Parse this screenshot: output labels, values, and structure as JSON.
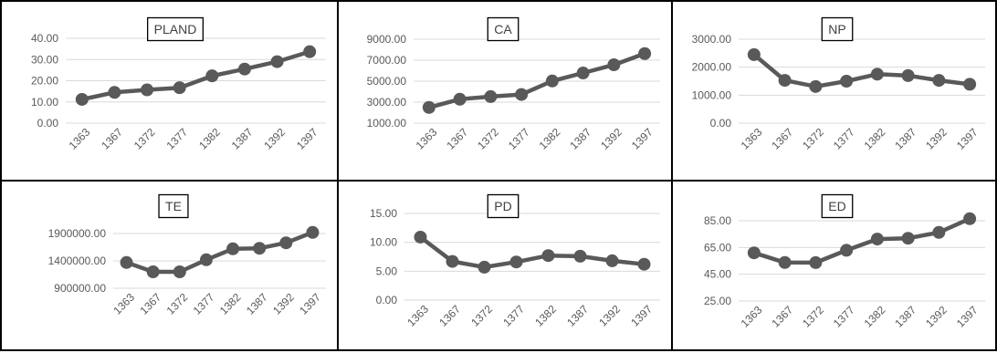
{
  "chart_data": [
    {
      "type": "line",
      "title": "PLAND",
      "categories": [
        "1363",
        "1367",
        "1372",
        "1377",
        "1382",
        "1387",
        "1392",
        "1397"
      ],
      "values": [
        11.2,
        14.5,
        15.7,
        16.7,
        22.3,
        25.5,
        29.0,
        33.7
      ],
      "ylim": [
        0,
        40
      ],
      "yticks": [
        "40.00",
        "30.00",
        "20.00",
        "10.00",
        "0.00"
      ],
      "xlabel": "",
      "ylabel": "",
      "grid": true,
      "legend": "none",
      "color": "#595959"
    },
    {
      "type": "line",
      "title": "CA",
      "categories": [
        "1363",
        "1367",
        "1372",
        "1377",
        "1382",
        "1387",
        "1392",
        "1397"
      ],
      "values": [
        2500,
        3280,
        3530,
        3730,
        5020,
        5780,
        6560,
        7630
      ],
      "ylim": [
        1000,
        9000
      ],
      "yticks": [
        "9000.00",
        "7000.00",
        "5000.00",
        "3000.00",
        "1000.00"
      ],
      "xlabel": "",
      "ylabel": "",
      "grid": true,
      "legend": "none",
      "color": "#595959"
    },
    {
      "type": "line",
      "title": "NP",
      "categories": [
        "1363",
        "1367",
        "1372",
        "1377",
        "1382",
        "1387",
        "1392",
        "1397"
      ],
      "values": [
        2450,
        1530,
        1310,
        1500,
        1750,
        1700,
        1530,
        1390
      ],
      "ylim": [
        0,
        3000
      ],
      "yticks": [
        "3000.00",
        "2000.00",
        "1000.00",
        "0.00"
      ],
      "xlabel": "",
      "ylabel": "",
      "grid": true,
      "legend": "none",
      "color": "#595959"
    },
    {
      "type": "line",
      "title": "TE",
      "categories": [
        "1363",
        "1367",
        "1372",
        "1377",
        "1382",
        "1387",
        "1392",
        "1397"
      ],
      "values": [
        1370000,
        1200000,
        1200000,
        1420000,
        1620000,
        1630000,
        1730000,
        1920000
      ],
      "ylim": [
        900000,
        1900000
      ],
      "yticks": [
        "1900000.00",
        "1400000.00",
        "900000.00"
      ],
      "xlabel": "",
      "ylabel": "",
      "grid": true,
      "legend": "none",
      "color": "#595959"
    },
    {
      "type": "line",
      "title": "PD",
      "categories": [
        "1363",
        "1367",
        "1372",
        "1377",
        "1382",
        "1387",
        "1392",
        "1397"
      ],
      "values": [
        10.9,
        6.7,
        5.7,
        6.6,
        7.7,
        7.6,
        6.8,
        6.2
      ],
      "ylim": [
        0,
        15
      ],
      "yticks": [
        "15.00",
        "10.00",
        "5.00",
        "0.00"
      ],
      "xlabel": "",
      "ylabel": "",
      "grid": true,
      "legend": "none",
      "color": "#595959"
    },
    {
      "type": "line",
      "title": "ED",
      "categories": [
        "1363",
        "1367",
        "1372",
        "1377",
        "1382",
        "1387",
        "1392",
        "1397"
      ],
      "values": [
        61.0,
        53.8,
        53.7,
        62.9,
        71.3,
        71.9,
        76.3,
        86.5
      ],
      "ylim": [
        25,
        85
      ],
      "yticks": [
        "85.00",
        "65.00",
        "45.00",
        "25.00"
      ],
      "xlabel": "",
      "ylabel": "",
      "grid": true,
      "legend": "none",
      "color": "#595959"
    }
  ]
}
